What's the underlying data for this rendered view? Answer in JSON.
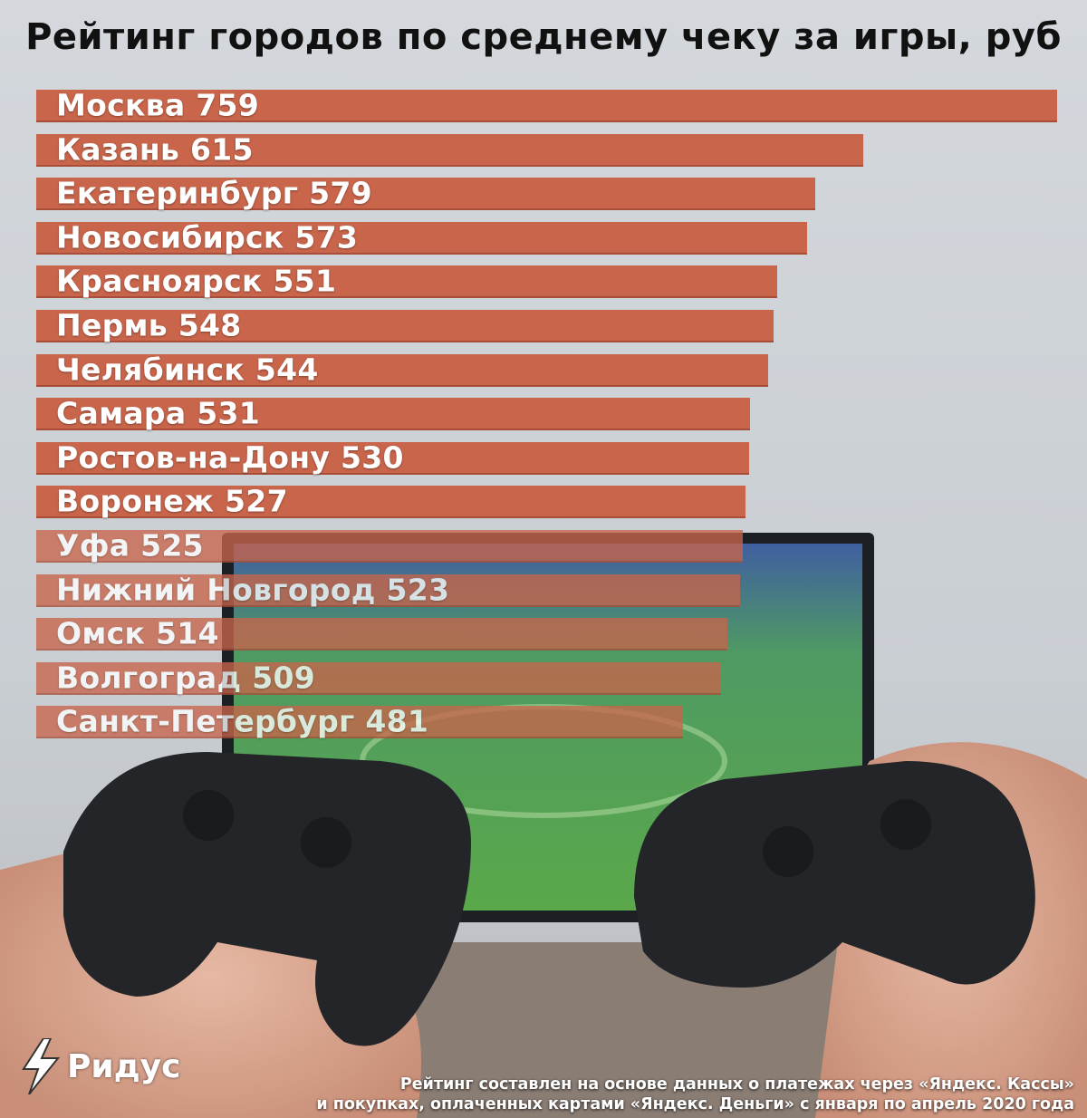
{
  "colors": {
    "bar": "#c8654b",
    "bar_edge": "#a84e38",
    "title": "#111111",
    "label": "#ffffff"
  },
  "chart_data": {
    "type": "bar",
    "orientation": "horizontal",
    "title": "Рейтинг городов по среднему чеку за игры, руб",
    "xlim": [
      0,
      759
    ],
    "grid": false,
    "categories": [
      "Москва",
      "Казань",
      "Екатеринбург",
      "Новосибирск",
      "Красноярск",
      "Пермь",
      "Челябинск",
      "Самара",
      "Ростов-на-Дону",
      "Воронеж",
      "Уфа",
      "Нижний Новгород",
      "Омск",
      "Волгоград",
      "Санкт-Петербург"
    ],
    "values": [
      759,
      615,
      579,
      573,
      551,
      548,
      544,
      531,
      530,
      527,
      525,
      523,
      514,
      509,
      481
    ]
  },
  "logo": {
    "text": "Ридус",
    "icon": "lightning-bolt-icon"
  },
  "footnote": {
    "line1": "Рейтинг составлен на основе данных о платежах через «Яндекс. Кассы»",
    "line2": "и покупках, оплаченных картами «Яндекс. Деньги» с января по апрель 2020 года"
  }
}
